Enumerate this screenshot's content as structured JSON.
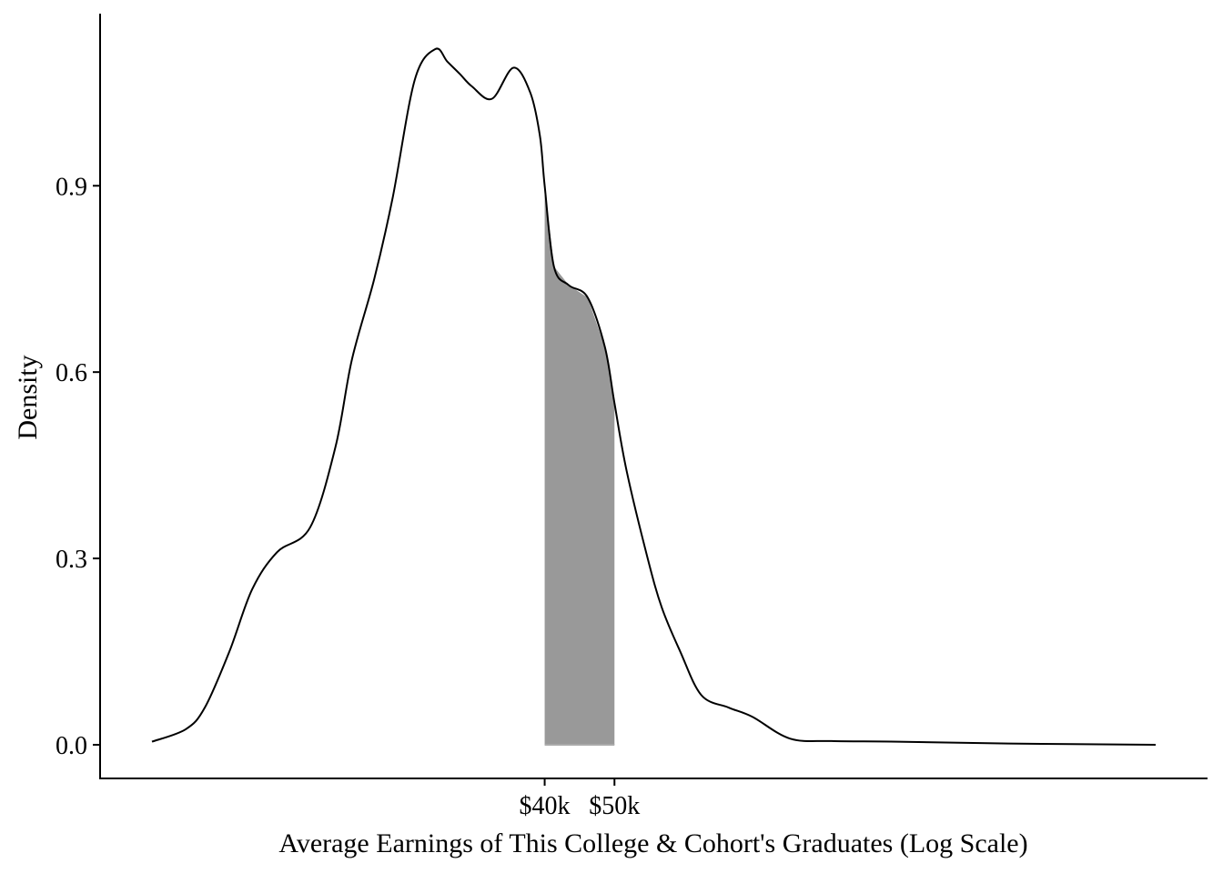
{
  "chart_data": {
    "type": "area",
    "xlabel": "Average Earnings of This College & Cohort's Graduates (Log Scale)",
    "ylabel": "Density",
    "x_scale": "log",
    "xlim": [
      11400,
      282000
    ],
    "ylim": [
      0,
      1.12
    ],
    "y_ticks": [
      0.0,
      0.3,
      0.6,
      0.9
    ],
    "y_tick_labels": [
      "0.0",
      "0.3",
      "0.6",
      "0.9"
    ],
    "x_ticks": [
      40000,
      50000
    ],
    "x_tick_labels": [
      "$40k",
      "$50k"
    ],
    "grid": false,
    "legend": "none",
    "colors": {
      "line": "#000000",
      "shaded_area": "#999999",
      "axis": "#000000",
      "background": "#ffffff"
    },
    "highlight_range": [
      40000,
      50000
    ],
    "series": [
      {
        "x": [
          11400,
          12700,
          13500,
          14600,
          15700,
          17000,
          18900,
          20500,
          21600,
          23200,
          24600,
          26400,
          28200,
          29300,
          30500,
          31700,
          33800,
          36200,
          38200,
          39400,
          40000,
          41200,
          43200,
          45900,
          48500,
          50000,
          52000,
          55600,
          58200,
          61700,
          66000,
          72000,
          77700,
          87600,
          100100,
          123700,
          176000,
          282000
        ],
        "y": [
          0.005,
          0.025,
          0.06,
          0.15,
          0.25,
          0.31,
          0.35,
          0.48,
          0.62,
          0.75,
          0.88,
          1.07,
          1.12,
          1.1,
          1.08,
          1.06,
          1.04,
          1.09,
          1.05,
          0.98,
          0.9,
          0.77,
          0.74,
          0.72,
          0.64,
          0.55,
          0.44,
          0.3,
          0.22,
          0.15,
          0.08,
          0.06,
          0.045,
          0.01,
          0.006,
          0.005,
          0.002,
          0.0
        ]
      }
    ]
  }
}
